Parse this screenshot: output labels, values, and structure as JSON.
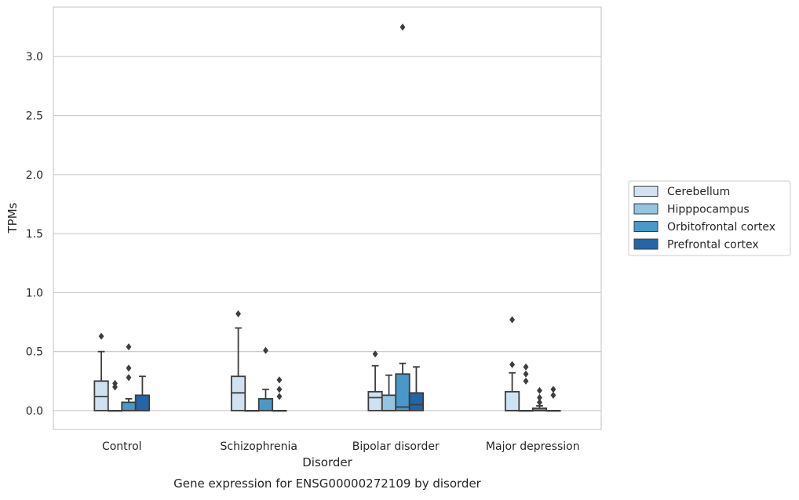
{
  "chart_data": {
    "type": "boxplot",
    "title": "Gene expression for ENSG00000272109 by disorder",
    "xlabel": "Disorder",
    "ylabel": "TPMs",
    "ylim": [
      -0.16,
      3.42
    ],
    "yticks": [
      "0.0",
      "0.5",
      "1.0",
      "1.5",
      "2.0",
      "2.5",
      "3.0"
    ],
    "grid": "horizontal",
    "legend_position": "right",
    "categories": [
      "Control",
      "Schizophrenia",
      "Bipolar disorder",
      "Major depression"
    ],
    "series": [
      {
        "name": "Cerebellum",
        "color": "#d0e1f2",
        "boxes": [
          {
            "min": 0.0,
            "q1": 0.0,
            "median": 0.12,
            "q3": 0.25,
            "max": 0.5,
            "outliers": [
              0.63
            ]
          },
          {
            "min": 0.0,
            "q1": 0.0,
            "median": 0.15,
            "q3": 0.29,
            "max": 0.7,
            "outliers": [
              0.82
            ]
          },
          {
            "min": 0.0,
            "q1": 0.0,
            "median": 0.11,
            "q3": 0.16,
            "max": 0.38,
            "outliers": [
              0.48
            ]
          },
          {
            "min": 0.0,
            "q1": 0.0,
            "median": 0.0,
            "q3": 0.16,
            "max": 0.32,
            "outliers": [
              0.39,
              0.77
            ]
          }
        ]
      },
      {
        "name": "Hipppocampus",
        "color": "#94c4df",
        "boxes": [
          {
            "min": 0.0,
            "q1": 0.0,
            "median": 0.0,
            "q3": 0.0,
            "max": 0.0,
            "outliers": [
              0.2,
              0.23
            ]
          },
          {
            "min": 0.0,
            "q1": 0.0,
            "median": 0.0,
            "q3": 0.0,
            "max": 0.0,
            "outliers": []
          },
          {
            "min": 0.0,
            "q1": 0.0,
            "median": 0.0,
            "q3": 0.13,
            "max": 0.3,
            "outliers": []
          },
          {
            "min": 0.0,
            "q1": 0.0,
            "median": 0.0,
            "q3": 0.0,
            "max": 0.0,
            "outliers": [
              0.25,
              0.31,
              0.37
            ]
          }
        ]
      },
      {
        "name": "Orbitofrontal cortex",
        "color": "#4a98c9",
        "boxes": [
          {
            "min": 0.0,
            "q1": 0.0,
            "median": 0.0,
            "q3": 0.07,
            "max": 0.1,
            "outliers": [
              0.28,
              0.36,
              0.54
            ]
          },
          {
            "min": 0.0,
            "q1": 0.0,
            "median": 0.0,
            "q3": 0.1,
            "max": 0.18,
            "outliers": [
              0.51
            ]
          },
          {
            "min": 0.0,
            "q1": 0.0,
            "median": 0.03,
            "q3": 0.31,
            "max": 0.4,
            "outliers": [
              3.25
            ]
          },
          {
            "min": 0.0,
            "q1": 0.0,
            "median": 0.0,
            "q3": 0.02,
            "max": 0.04,
            "outliers": [
              0.07,
              0.11,
              0.17
            ]
          }
        ]
      },
      {
        "name": "Prefrontal cortex",
        "color": "#2365a8",
        "boxes": [
          {
            "min": 0.0,
            "q1": 0.0,
            "median": 0.0,
            "q3": 0.13,
            "max": 0.29,
            "outliers": []
          },
          {
            "min": 0.0,
            "q1": 0.0,
            "median": 0.0,
            "q3": 0.0,
            "max": 0.0,
            "outliers": [
              0.12,
              0.18,
              0.26
            ]
          },
          {
            "min": 0.0,
            "q1": 0.0,
            "median": 0.05,
            "q3": 0.15,
            "max": 0.37,
            "outliers": []
          },
          {
            "min": 0.0,
            "q1": 0.0,
            "median": 0.0,
            "q3": 0.0,
            "max": 0.0,
            "outliers": [
              0.13,
              0.18
            ]
          }
        ]
      }
    ]
  }
}
